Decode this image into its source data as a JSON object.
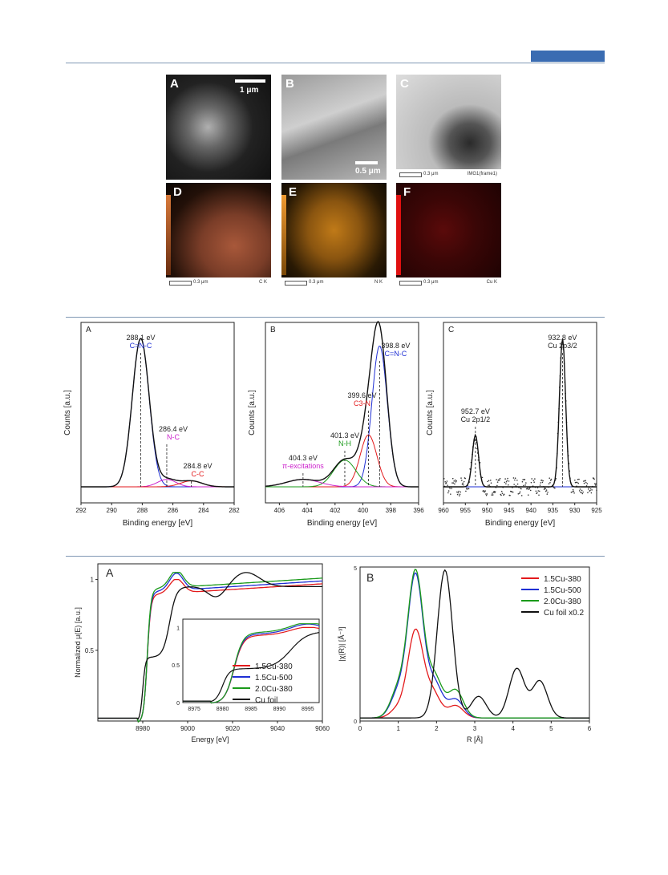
{
  "figure1": {
    "panels": [
      {
        "id": "A",
        "scale": "1 μm",
        "caption": "",
        "element": ""
      },
      {
        "id": "B",
        "scale": "0.5 μm",
        "caption": "",
        "element": ""
      },
      {
        "id": "C",
        "scale": "",
        "caption": "0.3 μm",
        "element": "IMG1(frame1)"
      },
      {
        "id": "D",
        "scale": "",
        "caption": "0.3 μm",
        "element": "C K"
      },
      {
        "id": "E",
        "scale": "",
        "caption": "0.3 μm",
        "element": "N K"
      },
      {
        "id": "F",
        "scale": "",
        "caption": "0.3 μm",
        "element": "Cu K"
      }
    ]
  },
  "chart_data": [
    {
      "panel": "A",
      "type": "line",
      "xlabel": "Binding energy [eV]",
      "ylabel": "Counts [a.u.]",
      "xlim": [
        292,
        282
      ],
      "xticks": [
        292,
        290,
        288,
        286,
        284,
        282
      ],
      "peaks": [
        {
          "energy": 288.1,
          "label": "288.1 eV",
          "assign": "C=N-C",
          "height": 1.0,
          "width": 0.55
        },
        {
          "energy": 286.4,
          "label": "286.4 eV",
          "assign": "N-C",
          "height": 0.05,
          "width": 0.6
        },
        {
          "energy": 284.8,
          "label": "284.8 eV",
          "assign": "C-C",
          "height": 0.04,
          "width": 0.7
        }
      ]
    },
    {
      "panel": "B",
      "type": "line",
      "xlabel": "Binding energy [eV]",
      "ylabel": "Counts [a.u.]",
      "xlim": [
        407,
        396
      ],
      "xticks": [
        406,
        404,
        402,
        400,
        398,
        396
      ],
      "peaks": [
        {
          "energy": 398.8,
          "label": "398.8 eV",
          "assign": "C=N-C",
          "height": 0.95,
          "width": 0.55
        },
        {
          "energy": 399.6,
          "label": "399.6 eV",
          "assign": "C3-N",
          "height": 0.35,
          "width": 0.6
        },
        {
          "energy": 401.3,
          "label": "401.3 eV",
          "assign": "N-H",
          "height": 0.18,
          "width": 0.8
        },
        {
          "energy": 404.3,
          "label": "404.3 eV",
          "assign": "π-excitations",
          "height": 0.05,
          "width": 1.2
        }
      ]
    },
    {
      "panel": "C",
      "type": "scatter",
      "xlabel": "Binding energy [eV]",
      "ylabel": "Counts [a.u.]",
      "xlim": [
        960,
        925
      ],
      "xticks": [
        960,
        955,
        950,
        945,
        940,
        935,
        930,
        925
      ],
      "peaks": [
        {
          "energy": 932.8,
          "label": "932.8 eV",
          "assign": "Cu 2p3/2",
          "height": 1.0,
          "width": 0.7
        },
        {
          "energy": 952.7,
          "label": "952.7 eV",
          "assign": "Cu 2p1/2",
          "height": 0.35,
          "width": 0.7
        }
      ]
    },
    {
      "panel": "A",
      "type": "line",
      "xlabel": "Energy [eV]",
      "ylabel": "Normalized μ(E) [a.u.]",
      "xlim": [
        8960,
        9060
      ],
      "xticks": [
        8980,
        9000,
        9020,
        9040,
        9060
      ],
      "yticks": [
        0.5,
        1
      ],
      "series": [
        {
          "name": "1.5Cu-380",
          "color": "#e31a1c"
        },
        {
          "name": "1.5Cu-500",
          "color": "#1f2fd4"
        },
        {
          "name": "2.0Cu-380",
          "color": "#1a9a1a"
        },
        {
          "name": "Cu foil",
          "color": "#111111"
        }
      ],
      "inset": {
        "xlim": [
          8973,
          8997
        ],
        "xticks": [
          8975,
          8980,
          8985,
          8990,
          8995
        ],
        "yticks": [
          0,
          0.5,
          1
        ]
      }
    },
    {
      "panel": "B",
      "type": "line",
      "xlabel": "R [Å]",
      "ylabel": "|χ(R)| [Å⁻³]",
      "xlim": [
        0,
        6
      ],
      "xticks": [
        0,
        1,
        2,
        3,
        4,
        5,
        6
      ],
      "ytop": "5",
      "series": [
        {
          "name": "1.5Cu-380",
          "color": "#e31a1c",
          "peaks": [
            [
              1.0,
              0.3
            ],
            [
              1.45,
              2.8
            ],
            [
              1.9,
              0.8
            ],
            [
              2.5,
              0.4
            ]
          ]
        },
        {
          "name": "1.5Cu-500",
          "color": "#1f2fd4",
          "peaks": [
            [
              1.0,
              0.8
            ],
            [
              1.45,
              4.6
            ],
            [
              1.95,
              1.1
            ],
            [
              2.5,
              0.6
            ]
          ]
        },
        {
          "name": "2.0Cu-380",
          "color": "#1a9a1a",
          "peaks": [
            [
              1.0,
              0.9
            ],
            [
              1.45,
              4.7
            ],
            [
              1.95,
              1.3
            ],
            [
              2.5,
              0.9
            ]
          ]
        },
        {
          "name": "Cu foil x0.2",
          "color": "#111111",
          "peaks": [
            [
              2.22,
              4.8
            ],
            [
              3.1,
              0.7
            ],
            [
              4.1,
              1.6
            ],
            [
              4.7,
              1.2
            ]
          ]
        }
      ]
    }
  ]
}
